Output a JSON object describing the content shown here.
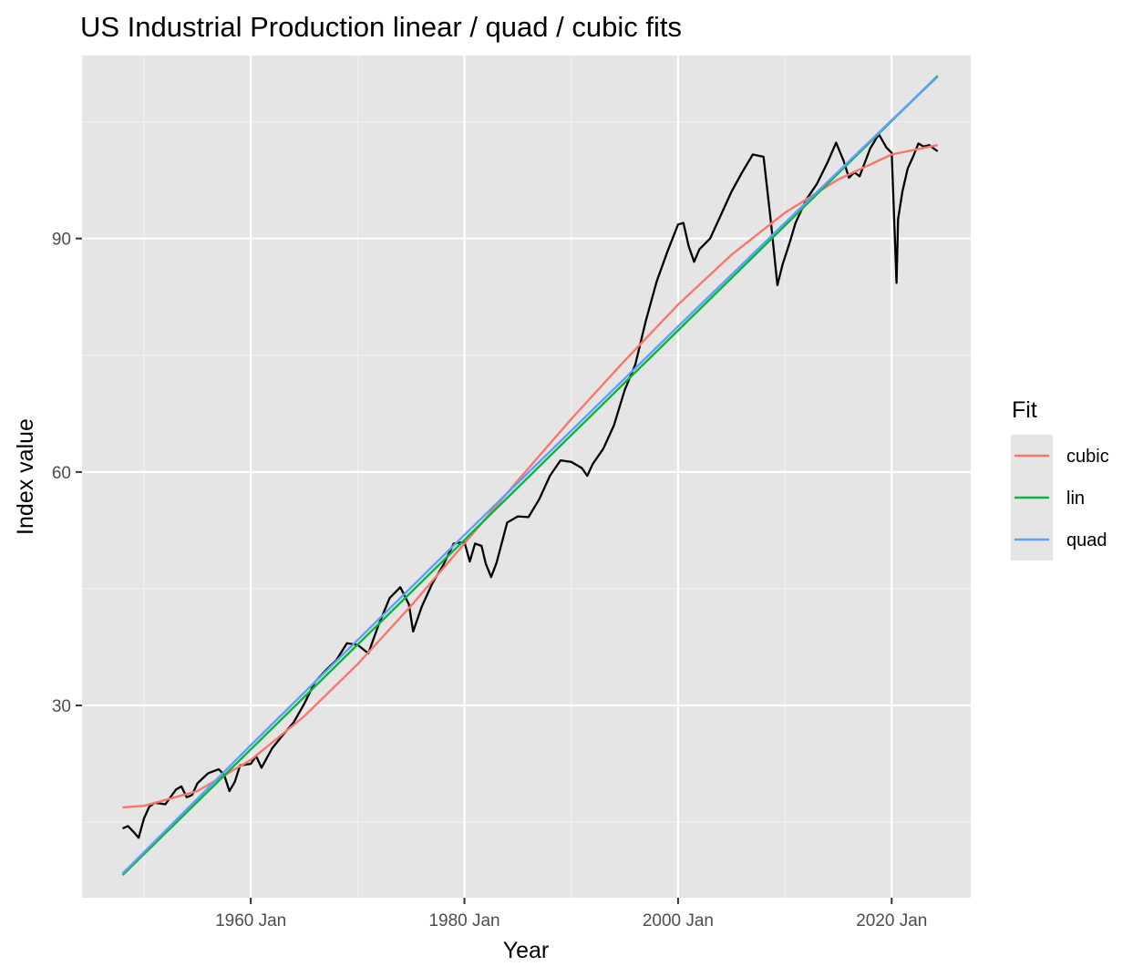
{
  "chart_data": {
    "type": "line",
    "title": "US Industrial Production linear / quad / cubic fits",
    "xlabel": "Year",
    "ylabel": "Index value",
    "xlim": [
      1944.2,
      2027.4
    ],
    "ylim": [
      5.3,
      113.5
    ],
    "x_ticks": [
      {
        "value": 1960,
        "label": "1960 Jan"
      },
      {
        "value": 1980,
        "label": "1980 Jan"
      },
      {
        "value": 2000,
        "label": "2000 Jan"
      },
      {
        "value": 2020,
        "label": "2020 Jan"
      }
    ],
    "x_minor_ticks": [
      1950,
      1970,
      1990,
      2010
    ],
    "y_ticks": [
      {
        "value": 30,
        "label": "30"
      },
      {
        "value": 60,
        "label": "60"
      },
      {
        "value": 90,
        "label": "90"
      }
    ],
    "y_minor_ticks": [
      15,
      45,
      75,
      105
    ],
    "grid": true,
    "background": "#e5e5e5",
    "legend": {
      "title": "Fit",
      "position": "right"
    },
    "series": [
      {
        "name": "cubic",
        "color": "#f8766d",
        "x": [
          1948,
          1950,
          1955,
          1960,
          1965,
          1970,
          1975,
          1980,
          1985,
          1990,
          1995,
          2000,
          2005,
          2010,
          2015,
          2020,
          2024.3
        ],
        "values": [
          16.9,
          17.1,
          19.0,
          23.0,
          28.6,
          35.3,
          42.8,
          50.8,
          58.9,
          66.8,
          74.3,
          81.5,
          87.9,
          93.3,
          97.6,
          100.8,
          102.0
        ]
      },
      {
        "name": "lin",
        "color": "#00ba38",
        "x": [
          1948,
          2024.3
        ],
        "values": [
          8.2,
          110.9
        ]
      },
      {
        "name": "quad",
        "color": "#619cff",
        "x": [
          1948,
          1960,
          1970,
          1980,
          1990,
          2000,
          2010,
          2020,
          2024.3
        ],
        "values": [
          8.4,
          24.9,
          38.4,
          51.9,
          65.3,
          78.7,
          92.0,
          105.2,
          110.8
        ]
      },
      {
        "name": "",
        "color": "#000000",
        "x": [
          1948,
          1948.5,
          1949,
          1949.5,
          1950,
          1950.5,
          1951,
          1952,
          1953,
          1953.5,
          1954,
          1954.5,
          1955,
          1956,
          1957,
          1957.5,
          1958,
          1958.5,
          1959,
          1960,
          1960.5,
          1961,
          1962,
          1963,
          1964,
          1965,
          1966,
          1967,
          1968,
          1969,
          1970,
          1971,
          1972,
          1973,
          1974,
          1974.8,
          1975.2,
          1976,
          1977,
          1978,
          1979,
          1980,
          1980.5,
          1981,
          1981.6,
          1982,
          1982.5,
          1983,
          1984,
          1985,
          1986,
          1987,
          1988,
          1989,
          1990,
          1991,
          1991.5,
          1992,
          1993,
          1994,
          1995,
          1996,
          1997,
          1998,
          1999,
          2000,
          2000.5,
          2001,
          2001.5,
          2002,
          2003,
          2004,
          2005,
          2006,
          2007,
          2008,
          2008.7,
          2009.3,
          2009.8,
          2010.5,
          2011,
          2012,
          2013,
          2014,
          2014.8,
          2015.5,
          2016,
          2016.5,
          2017,
          2018,
          2018.8,
          2019.5,
          2020,
          2020.3,
          2020.45,
          2020.6,
          2021,
          2021.5,
          2022,
          2022.5,
          2023,
          2023.5,
          2024,
          2024.3
        ],
        "values": [
          14.2,
          14.5,
          13.8,
          13.0,
          15.5,
          17.0,
          17.5,
          17.3,
          19.2,
          19.6,
          18.2,
          18.5,
          20.0,
          21.3,
          21.8,
          21.1,
          19.0,
          20.2,
          22.3,
          22.5,
          23.5,
          22.0,
          24.5,
          26.2,
          27.8,
          30.2,
          33.0,
          34.5,
          35.8,
          38.0,
          37.8,
          36.7,
          40.5,
          43.8,
          45.2,
          43.0,
          39.5,
          42.7,
          45.7,
          48.0,
          50.8,
          51.0,
          48.5,
          50.8,
          50.5,
          48.2,
          46.5,
          48.3,
          53.5,
          54.3,
          54.2,
          56.5,
          59.5,
          61.5,
          61.3,
          60.5,
          59.5,
          61.0,
          63.0,
          66.0,
          70.5,
          73.8,
          79.5,
          84.5,
          88.3,
          91.8,
          92.0,
          89.0,
          87.0,
          88.6,
          90.0,
          93.0,
          96.0,
          98.5,
          100.8,
          100.5,
          92.0,
          84.0,
          86.7,
          89.7,
          92.0,
          95.0,
          97.0,
          99.8,
          102.3,
          100.0,
          97.8,
          98.5,
          98.0,
          101.6,
          103.4,
          101.7,
          101.0,
          90.0,
          84.3,
          92.5,
          96.0,
          99.0,
          100.5,
          102.2,
          101.8,
          102.0,
          101.5,
          101.2
        ]
      }
    ]
  }
}
